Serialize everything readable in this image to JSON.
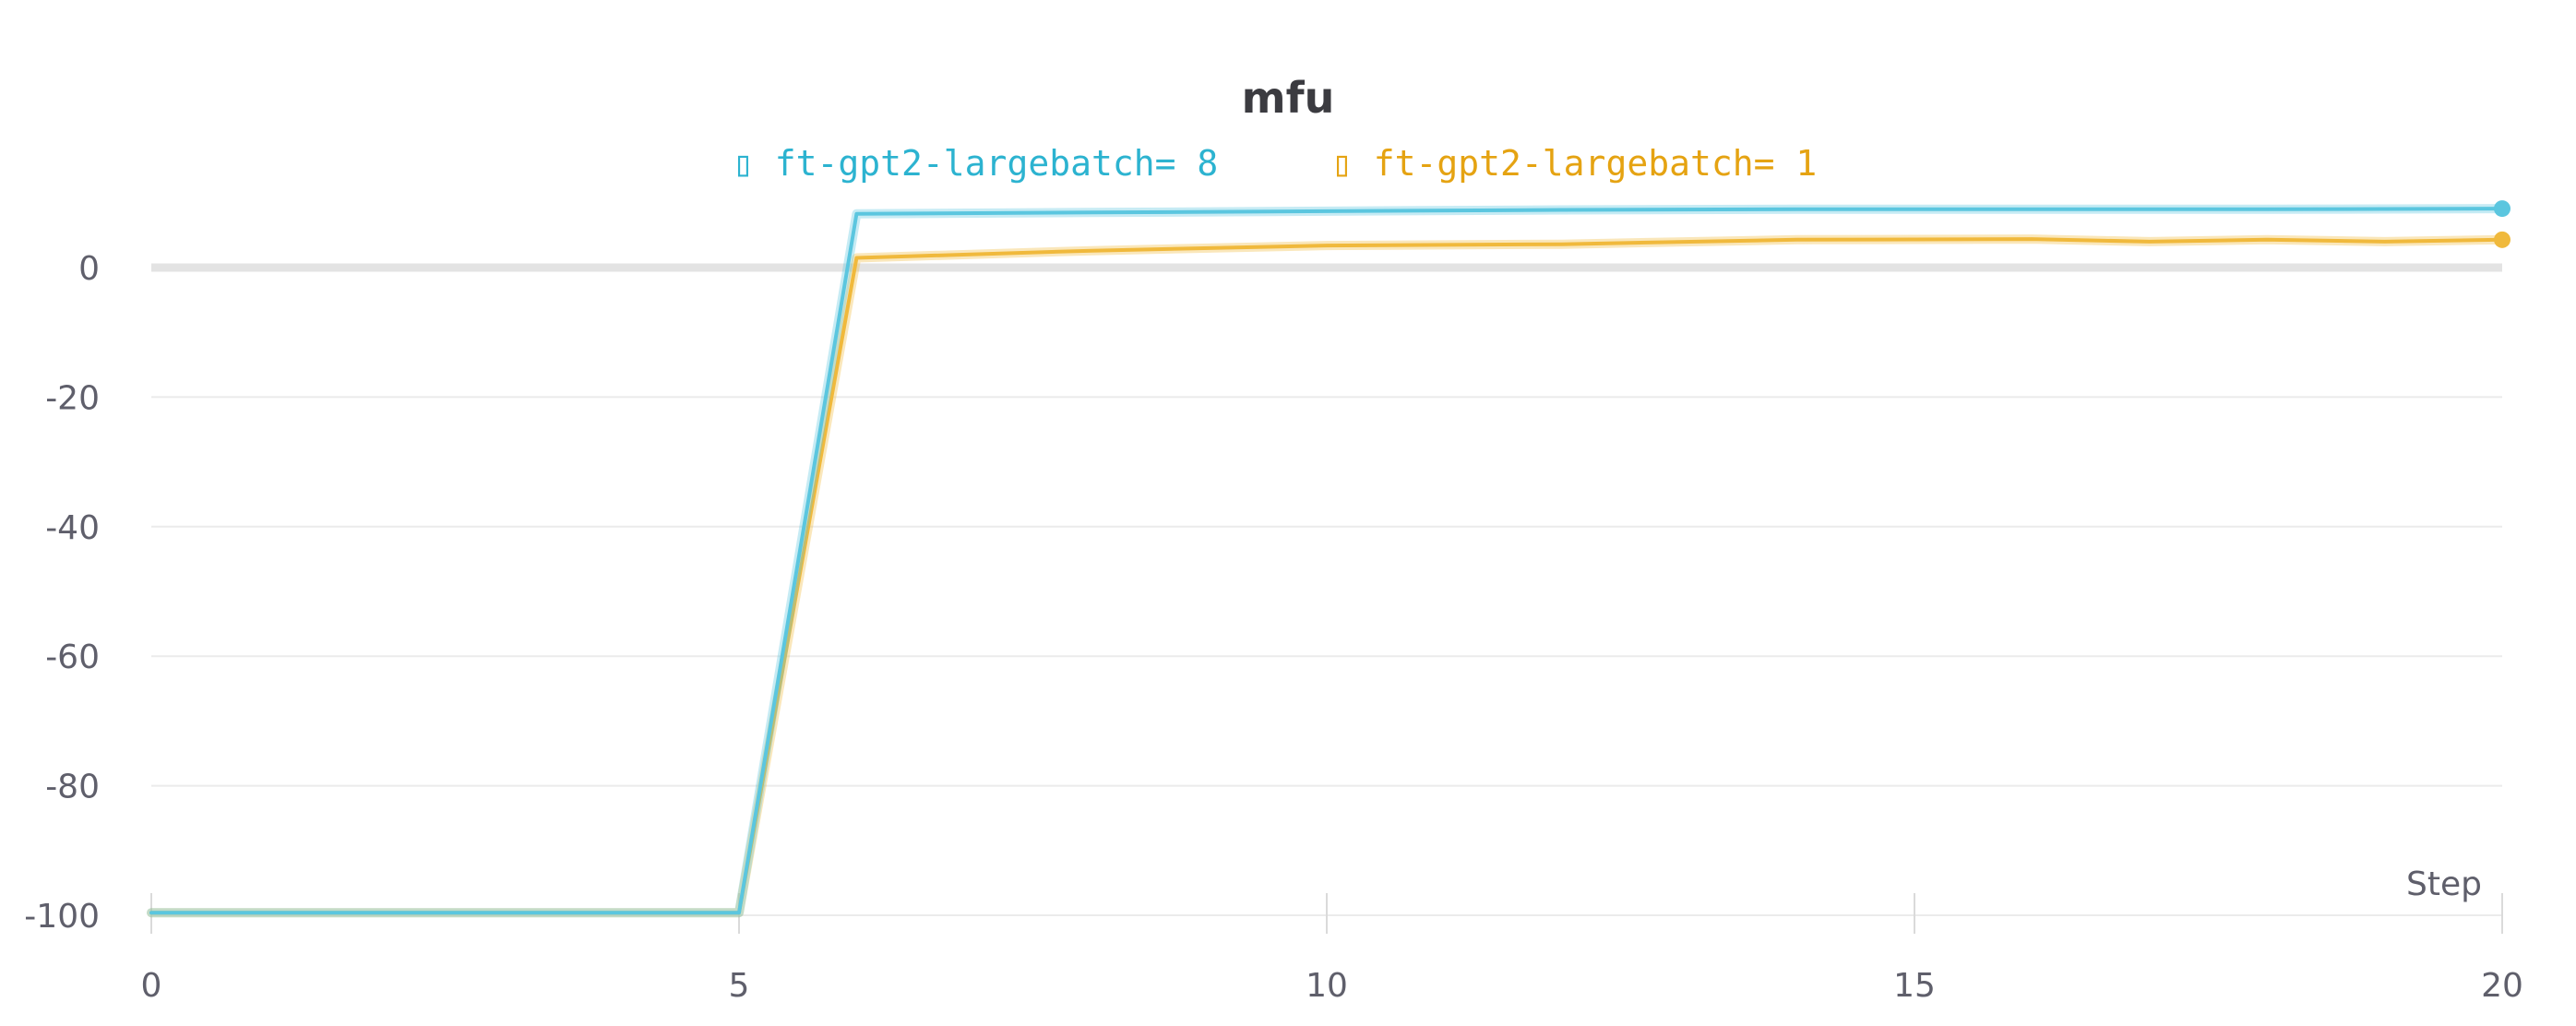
{
  "chart_data": {
    "type": "line",
    "title": "mfu",
    "xlabel": "Step",
    "ylabel": "",
    "xlim": [
      0,
      20
    ],
    "ylim": [
      -100,
      0
    ],
    "x_ticks": [
      0,
      5,
      10,
      15,
      20
    ],
    "x_tick_labels": [
      "0",
      "5",
      "10",
      "15",
      "20"
    ],
    "y_ticks": [
      0,
      -20,
      -40,
      -60,
      -80,
      -100
    ],
    "y_tick_labels": [
      "0",
      "-20",
      "-40",
      "-60",
      "-80",
      "-100"
    ],
    "grid": true,
    "legend_position": "top-center",
    "legend_icon": "▯",
    "series": [
      {
        "name": "ft-gpt2-largebatch= 8",
        "color": "#5bc6df",
        "x": [
          0,
          5,
          6,
          8,
          10,
          12,
          14,
          16,
          18,
          20
        ],
        "y": [
          -99.6,
          -99.6,
          8.3,
          8.5,
          8.7,
          8.9,
          9.0,
          9.0,
          9.0,
          9.1
        ]
      },
      {
        "name": "ft-gpt2-largebatch= 1",
        "color": "#f0b93c",
        "x": [
          0,
          5,
          6,
          8,
          10,
          12,
          14,
          16,
          17,
          18,
          19,
          20
        ],
        "y": [
          -99.6,
          -99.6,
          1.5,
          2.6,
          3.4,
          3.6,
          4.3,
          4.4,
          4.0,
          4.3,
          4.0,
          4.3
        ]
      }
    ]
  }
}
